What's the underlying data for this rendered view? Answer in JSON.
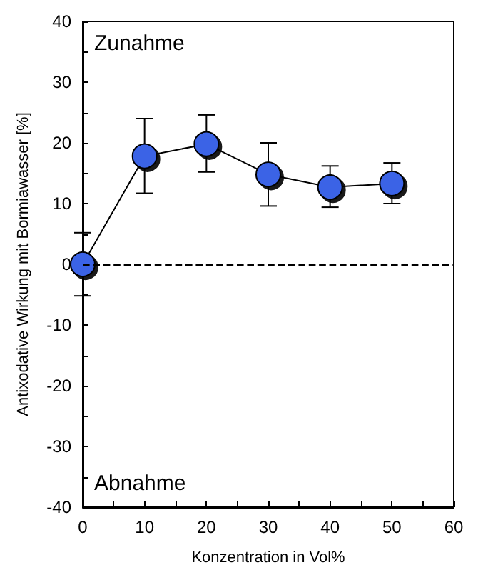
{
  "chart_data": {
    "type": "line",
    "xlabel": "Konzentration in Vol%",
    "ylabel": "Antixodative Wirkung mit Bormiawasser [%]",
    "x": [
      0,
      10,
      20,
      30,
      40,
      50
    ],
    "series": [
      {
        "color": "#3b63e6",
        "values": [
          0,
          17.8,
          19.8,
          14.8,
          12.7,
          13.3
        ],
        "errors": [
          [
            -5.2,
            5.2
          ],
          [
            11.7,
            24
          ],
          [
            15.2,
            24.6
          ],
          [
            9.6,
            20
          ],
          [
            9.4,
            16.2
          ],
          [
            10,
            16.7
          ]
        ]
      }
    ],
    "xlim": [
      0,
      60
    ],
    "xticks": [
      0,
      10,
      20,
      30,
      40,
      50,
      60
    ],
    "ylim": [
      -40,
      40
    ],
    "yticks": [
      -40,
      -30,
      -20,
      -10,
      0,
      10,
      20,
      30,
      40
    ],
    "ref_lines": [
      {
        "axis": "y",
        "value": 0,
        "line_style": "dashed",
        "color": "#000000"
      }
    ],
    "annotations": [
      "Zunahme",
      "Abnahme"
    ],
    "marker": "circle",
    "line_style": "solid",
    "grid": false
  }
}
